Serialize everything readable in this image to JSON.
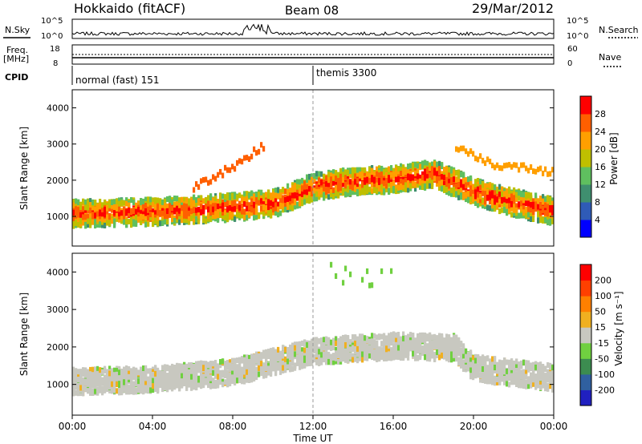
{
  "header": {
    "station": "Hokkaido (fitACF)",
    "beam": "Beam 08",
    "date": "29/Mar/2012"
  },
  "status_panel": {
    "nsky_label": "N.Sky",
    "nsearch_label": "N.Search",
    "count_ticks": [
      "10^5",
      "10^0"
    ],
    "freq_label": "Freq.",
    "freq_unit": "[MHz]",
    "freq_ticks": [
      "18",
      "8"
    ],
    "nave_label": "Nave",
    "nave_ticks": [
      "60",
      "0"
    ],
    "cpid_label": "CPID",
    "cpid_segments": [
      {
        "label": "normal (fast) 151",
        "start_hour": 0
      },
      {
        "label": "themis 3300",
        "start_hour": 12
      }
    ]
  },
  "colors": {
    "power_scale": [
      "#0000ff",
      "#2f5bb7",
      "#3f8f6f",
      "#5fbf5f",
      "#bfbf00",
      "#ff9f00",
      "#ff5f00",
      "#ff0000"
    ],
    "velocity_scale": [
      "#2020c0",
      "#3060a0",
      "#3c8c50",
      "#70d040",
      "#c8c8c0",
      "#f0b020",
      "#ff8000",
      "#ff4000",
      "#ff0000"
    ]
  },
  "chart_data": [
    {
      "type": "heatmap",
      "name": "Power",
      "colorbar_label": "Power [dB]",
      "colorbar_ticks": [
        "28",
        "24",
        "20",
        "16",
        "12",
        "8",
        "4"
      ],
      "clim": [
        0,
        32
      ],
      "ylabel": "Slant Range [km]",
      "yticks": [
        "4000",
        "3000",
        "2000",
        "1000"
      ],
      "ylim": [
        180,
        4500
      ],
      "xlim": [
        0,
        24
      ],
      "features": [
        {
          "feature": "main_band",
          "points": [
            [
              0,
              1150
            ],
            [
              4,
              1200
            ],
            [
              8,
              1330
            ],
            [
              10,
              1430
            ],
            [
              12,
              1900
            ],
            [
              14,
              2050
            ],
            [
              16,
              2100
            ],
            [
              18,
              2250
            ],
            [
              19,
              2000
            ],
            [
              20,
              1750
            ],
            [
              22,
              1450
            ],
            [
              24,
              1200
            ]
          ]
        },
        {
          "feature": "upper_arc_morning",
          "points": [
            [
              6,
              1900
            ],
            [
              8,
              2450
            ],
            [
              9.5,
              3050
            ]
          ]
        },
        {
          "feature": "evening_arc",
          "points": [
            [
              19,
              3000
            ],
            [
              21,
              2500
            ],
            [
              24,
              2300
            ]
          ]
        }
      ]
    },
    {
      "type": "heatmap",
      "name": "Velocity",
      "colorbar_label": "Velocity [m s⁻¹]",
      "colorbar_ticks": [
        "200",
        "100",
        "50",
        "15",
        "-15",
        "-50",
        "-100",
        "-200"
      ],
      "clim": [
        -250,
        250
      ],
      "ylabel": "Slant Range [km]",
      "yticks": [
        "4000",
        "3000",
        "2000",
        "1000"
      ],
      "ylim": [
        180,
        4500
      ],
      "xlim": [
        0,
        24
      ],
      "features": [
        {
          "feature": "ground_scatter_band",
          "points": [
            [
              0,
              1150
            ],
            [
              4,
              1200
            ],
            [
              8,
              1400
            ],
            [
              12,
              1950
            ],
            [
              16,
              2100
            ],
            [
              19,
              2050
            ],
            [
              20,
              1500
            ],
            [
              24,
              1250
            ]
          ]
        }
      ]
    }
  ],
  "xaxis": {
    "label": "Time UT",
    "ticks": [
      "00:00",
      "04:00",
      "08:00",
      "12:00",
      "16:00",
      "20:00",
      "00:00"
    ],
    "tick_hours": [
      0,
      4,
      8,
      12,
      16,
      20,
      24
    ]
  }
}
